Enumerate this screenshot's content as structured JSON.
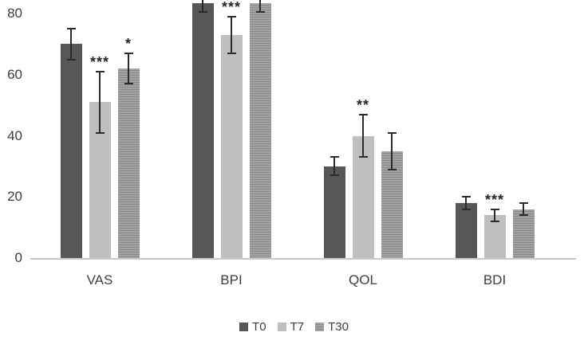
{
  "chart_data": {
    "type": "bar",
    "categories": [
      "VAS",
      "BPI",
      "QOL",
      "BDI"
    ],
    "series": [
      {
        "name": "T0",
        "color": "#575757",
        "pattern": "solid",
        "values": [
          70,
          83.5,
          30,
          18
        ],
        "errors": [
          5,
          3,
          3,
          2
        ]
      },
      {
        "name": "T7",
        "color": "#bfbfbf",
        "pattern": "solid",
        "values": [
          51,
          73,
          40,
          14
        ],
        "errors": [
          10,
          6,
          7,
          2
        ]
      },
      {
        "name": "T30",
        "color": "#9a9a9a",
        "pattern": "hstripes",
        "values": [
          62,
          83.5,
          35,
          16
        ],
        "errors": [
          5,
          3,
          6,
          2
        ]
      }
    ],
    "annotations": [
      {
        "category": "VAS",
        "series": "T7",
        "text": "***"
      },
      {
        "category": "VAS",
        "series": "T30",
        "text": "*"
      },
      {
        "category": "BPI",
        "series": "T7",
        "text": "***"
      },
      {
        "category": "QOL",
        "series": "T7",
        "text": "**"
      },
      {
        "category": "BDI",
        "series": "T7",
        "text": "***"
      }
    ],
    "yticks": [
      0,
      20,
      40,
      60,
      80
    ],
    "ylim": [
      0,
      84.5
    ],
    "grid": false,
    "legend_position": "bottom"
  }
}
